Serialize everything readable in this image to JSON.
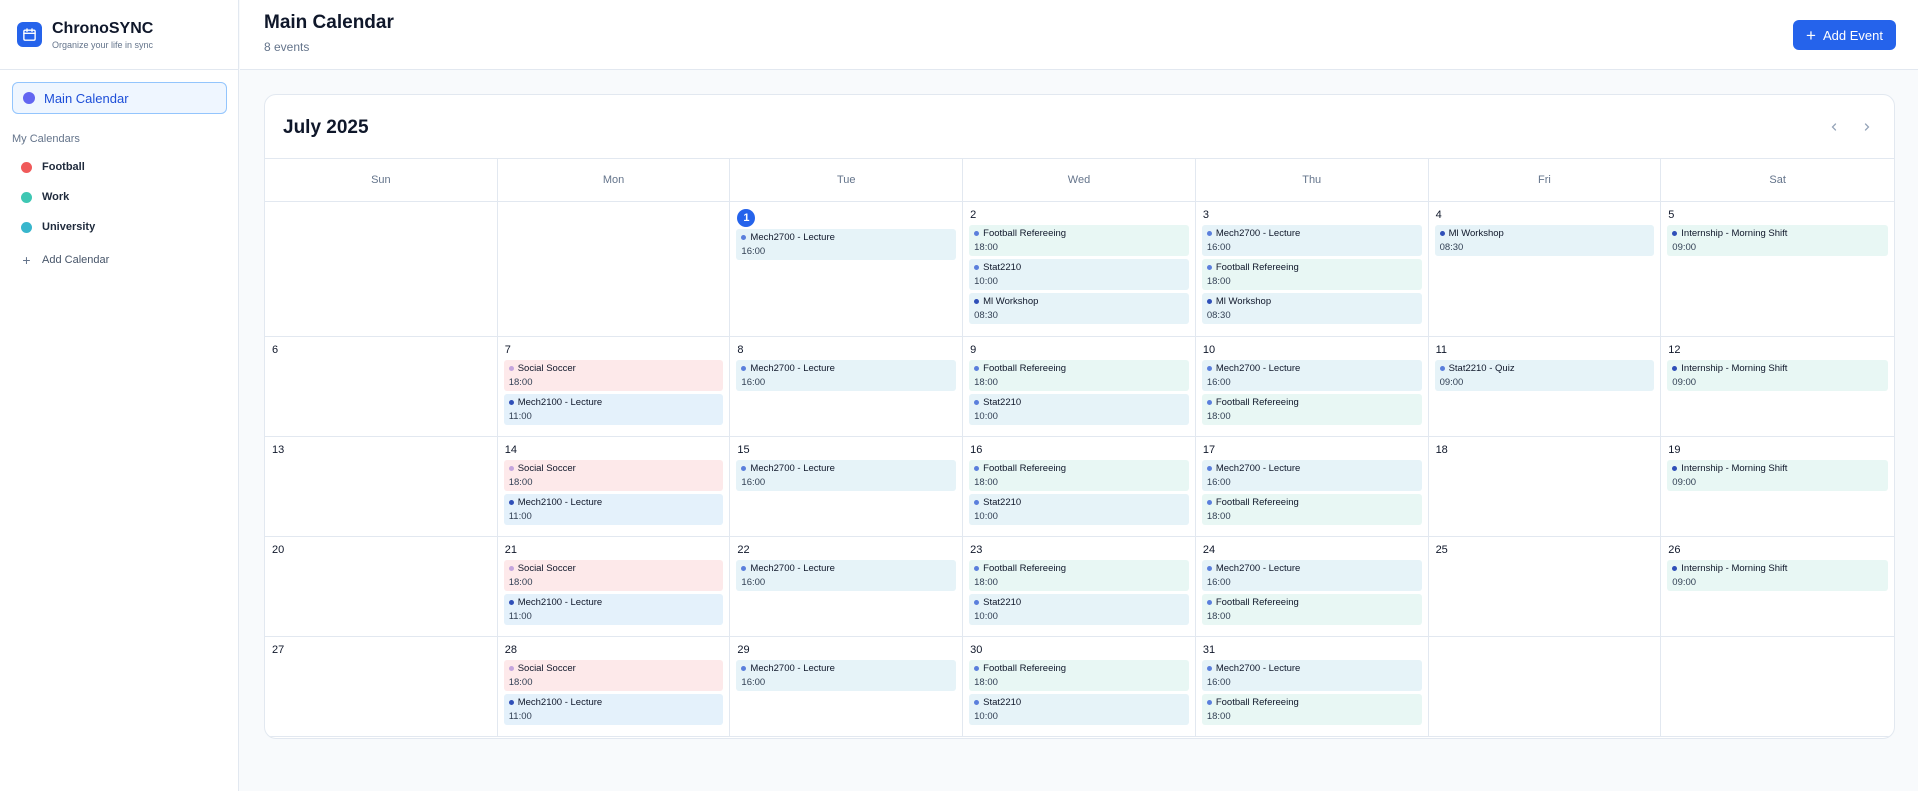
{
  "brand": {
    "name": "ChronoSYNC",
    "tagline": "Organize your life in sync",
    "icon": "calendar-icon"
  },
  "sidebar": {
    "main_calendar": {
      "label": "Main Calendar",
      "color": "#6366f1"
    },
    "section_title": "My Calendars",
    "calendars": [
      {
        "label": "Football",
        "color": "#f05a5a"
      },
      {
        "label": "Work",
        "color": "#3ec7b3"
      },
      {
        "label": "University",
        "color": "#38b6cc"
      }
    ],
    "add_calendar_label": "Add Calendar"
  },
  "header": {
    "title": "Main Calendar",
    "subtitle": "8 events",
    "add_event_label": "Add Event"
  },
  "calendar": {
    "month_label": "July 2025",
    "weekdays": [
      "Sun",
      "Mon",
      "Tue",
      "Wed",
      "Thu",
      "Fri",
      "Sat"
    ],
    "weeks": [
      [
        {
          "day": "",
          "events": []
        },
        {
          "day": "",
          "events": []
        },
        {
          "day": "1",
          "today": true,
          "events": [
            {
              "title": "Mech2700 - Lecture",
              "time": "16:00",
              "kind": "uni"
            }
          ]
        },
        {
          "day": "2",
          "events": [
            {
              "title": "Football Refereeing",
              "time": "18:00",
              "kind": "work"
            },
            {
              "title": "Stat2210",
              "time": "10:00",
              "kind": "uni"
            },
            {
              "title": "Ml Workshop",
              "time": "08:30",
              "kind": "uni2"
            }
          ]
        },
        {
          "day": "3",
          "events": [
            {
              "title": "Mech2700 - Lecture",
              "time": "16:00",
              "kind": "uni"
            },
            {
              "title": "Football Refereeing",
              "time": "18:00",
              "kind": "work"
            },
            {
              "title": "Ml Workshop",
              "time": "08:30",
              "kind": "uni2"
            }
          ]
        },
        {
          "day": "4",
          "events": [
            {
              "title": "Ml Workshop",
              "time": "08:30",
              "kind": "uni2"
            }
          ]
        },
        {
          "day": "5",
          "events": [
            {
              "title": "Internship - Morning Shift",
              "time": "09:00",
              "kind": "intern"
            }
          ]
        }
      ],
      [
        {
          "day": "6",
          "events": []
        },
        {
          "day": "7",
          "events": [
            {
              "title": "Social Soccer",
              "time": "18:00",
              "kind": "social"
            },
            {
              "title": "Mech2100 - Lecture",
              "time": "11:00",
              "kind": "mech2100"
            }
          ]
        },
        {
          "day": "8",
          "events": [
            {
              "title": "Mech2700 - Lecture",
              "time": "16:00",
              "kind": "uni"
            }
          ]
        },
        {
          "day": "9",
          "events": [
            {
              "title": "Football Refereeing",
              "time": "18:00",
              "kind": "work"
            },
            {
              "title": "Stat2210",
              "time": "10:00",
              "kind": "uni"
            }
          ]
        },
        {
          "day": "10",
          "events": [
            {
              "title": "Mech2700 - Lecture",
              "time": "16:00",
              "kind": "uni"
            },
            {
              "title": "Football Refereeing",
              "time": "18:00",
              "kind": "work"
            }
          ]
        },
        {
          "day": "11",
          "events": [
            {
              "title": "Stat2210 - Quiz",
              "time": "09:00",
              "kind": "uni"
            }
          ]
        },
        {
          "day": "12",
          "events": [
            {
              "title": "Internship - Morning Shift",
              "time": "09:00",
              "kind": "intern"
            }
          ]
        }
      ],
      [
        {
          "day": "13",
          "events": []
        },
        {
          "day": "14",
          "events": [
            {
              "title": "Social Soccer",
              "time": "18:00",
              "kind": "social"
            },
            {
              "title": "Mech2100 - Lecture",
              "time": "11:00",
              "kind": "mech2100"
            }
          ]
        },
        {
          "day": "15",
          "events": [
            {
              "title": "Mech2700 - Lecture",
              "time": "16:00",
              "kind": "uni"
            }
          ]
        },
        {
          "day": "16",
          "events": [
            {
              "title": "Football Refereeing",
              "time": "18:00",
              "kind": "work"
            },
            {
              "title": "Stat2210",
              "time": "10:00",
              "kind": "uni"
            }
          ]
        },
        {
          "day": "17",
          "events": [
            {
              "title": "Mech2700 - Lecture",
              "time": "16:00",
              "kind": "uni"
            },
            {
              "title": "Football Refereeing",
              "time": "18:00",
              "kind": "work"
            }
          ]
        },
        {
          "day": "18",
          "events": []
        },
        {
          "day": "19",
          "events": [
            {
              "title": "Internship - Morning Shift",
              "time": "09:00",
              "kind": "intern"
            }
          ]
        }
      ],
      [
        {
          "day": "20",
          "events": []
        },
        {
          "day": "21",
          "events": [
            {
              "title": "Social Soccer",
              "time": "18:00",
              "kind": "social"
            },
            {
              "title": "Mech2100 - Lecture",
              "time": "11:00",
              "kind": "mech2100"
            }
          ]
        },
        {
          "day": "22",
          "events": [
            {
              "title": "Mech2700 - Lecture",
              "time": "16:00",
              "kind": "uni"
            }
          ]
        },
        {
          "day": "23",
          "events": [
            {
              "title": "Football Refereeing",
              "time": "18:00",
              "kind": "work"
            },
            {
              "title": "Stat2210",
              "time": "10:00",
              "kind": "uni"
            }
          ]
        },
        {
          "day": "24",
          "events": [
            {
              "title": "Mech2700 - Lecture",
              "time": "16:00",
              "kind": "uni"
            },
            {
              "title": "Football Refereeing",
              "time": "18:00",
              "kind": "work"
            }
          ]
        },
        {
          "day": "25",
          "events": []
        },
        {
          "day": "26",
          "events": [
            {
              "title": "Internship - Morning Shift",
              "time": "09:00",
              "kind": "intern"
            }
          ]
        }
      ],
      [
        {
          "day": "27",
          "events": []
        },
        {
          "day": "28",
          "events": [
            {
              "title": "Social Soccer",
              "time": "18:00",
              "kind": "social"
            },
            {
              "title": "Mech2100 - Lecture",
              "time": "11:00",
              "kind": "mech2100"
            }
          ]
        },
        {
          "day": "29",
          "events": [
            {
              "title": "Mech2700 - Lecture",
              "time": "16:00",
              "kind": "uni"
            }
          ]
        },
        {
          "day": "30",
          "events": [
            {
              "title": "Football Refereeing",
              "time": "18:00",
              "kind": "work"
            },
            {
              "title": "Stat2210",
              "time": "10:00",
              "kind": "uni"
            }
          ]
        },
        {
          "day": "31",
          "events": [
            {
              "title": "Mech2700 - Lecture",
              "time": "16:00",
              "kind": "uni"
            },
            {
              "title": "Football Refereeing",
              "time": "18:00",
              "kind": "work"
            }
          ]
        },
        {
          "day": "",
          "events": []
        },
        {
          "day": "",
          "events": []
        }
      ]
    ],
    "event_styles": {
      "uni": {
        "bg": "#e6f3f8",
        "dot": "#5b7fdc"
      },
      "uni2": {
        "bg": "#e6f3f8",
        "dot": "#2f4fb8"
      },
      "work": {
        "bg": "#e8f7f4",
        "dot": "#5b7fdc"
      },
      "intern": {
        "bg": "#e8f7f4",
        "dot": "#2f4fb8"
      },
      "social": {
        "bg": "#fde9ea",
        "dot": "#c4a5dd"
      },
      "mech2100": {
        "bg": "#e4f1fb",
        "dot": "#2f4fb8"
      }
    }
  }
}
